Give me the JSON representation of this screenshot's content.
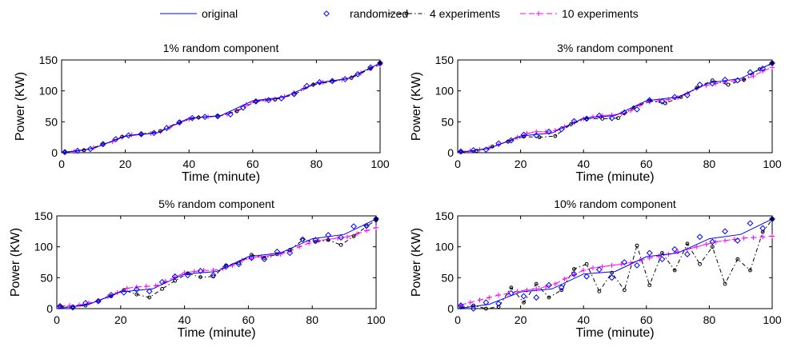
{
  "legend": [
    {
      "label": "original",
      "color": "#0000ff",
      "style": "line"
    },
    {
      "label": "randomized",
      "color": "#0000ff",
      "style": "diamond"
    },
    {
      "label": "4 experiments",
      "color": "#000000",
      "style": "dashdot-circle"
    },
    {
      "label": "10 experiments",
      "color": "#ff00ff",
      "style": "dash-plus"
    }
  ],
  "chart_data": [
    {
      "type": "line",
      "title": "1% random component",
      "xlabel": "Time (minute)",
      "ylabel": "Power (KW)",
      "xlim": [
        0,
        100
      ],
      "ylim": [
        0,
        150
      ],
      "xticks": [
        0,
        20,
        40,
        60,
        80,
        100
      ],
      "yticks": [
        0,
        50,
        100,
        150
      ],
      "series": [
        {
          "name": "original",
          "style": "line",
          "x": [
            0,
            10,
            20,
            30,
            40,
            50,
            60,
            70,
            80,
            90,
            100
          ],
          "y": [
            0,
            7,
            27,
            32,
            56,
            60,
            84,
            90,
            113,
            120,
            145
          ]
        },
        {
          "name": "randomized",
          "style": "diamond",
          "x": [
            1,
            5,
            9,
            13,
            17,
            21,
            25,
            29,
            33,
            37,
            41,
            45,
            49,
            53,
            57,
            61,
            65,
            69,
            73,
            77,
            81,
            85,
            89,
            93,
            97,
            100
          ],
          "y": [
            1,
            3,
            6,
            14,
            22,
            28,
            30,
            32,
            40,
            49,
            56,
            58,
            59,
            62,
            73,
            83,
            85,
            88,
            95,
            108,
            114,
            116,
            119,
            127,
            138,
            145
          ]
        },
        {
          "name": "4 experiments",
          "style": "dashdot-circle",
          "x": [
            1,
            7,
            13,
            19,
            25,
            31,
            37,
            43,
            49,
            55,
            61,
            67,
            73,
            79,
            85,
            91,
            97,
            100
          ],
          "y": [
            1,
            4,
            13,
            26,
            30,
            35,
            50,
            57,
            59,
            67,
            83,
            86,
            94,
            110,
            115,
            121,
            136,
            144
          ]
        },
        {
          "name": "10 experiments",
          "style": "dash-plus",
          "x": [
            1,
            4,
            7,
            10,
            13,
            16,
            19,
            22,
            25,
            28,
            31,
            34,
            37,
            40,
            43,
            46,
            49,
            52,
            55,
            58,
            61,
            64,
            67,
            70,
            73,
            76,
            79,
            82,
            85,
            88,
            91,
            94,
            97,
            100
          ],
          "y": [
            1,
            2,
            4,
            8,
            13,
            18,
            25,
            29,
            30,
            31,
            34,
            41,
            48,
            54,
            57,
            58,
            59,
            62,
            68,
            78,
            83,
            85,
            87,
            91,
            97,
            104,
            110,
            114,
            116,
            118,
            122,
            129,
            136,
            142
          ]
        }
      ]
    },
    {
      "type": "line",
      "title": "3% random component",
      "xlabel": "Time (minute)",
      "ylabel": "Power (KW)",
      "xlim": [
        0,
        100
      ],
      "ylim": [
        0,
        150
      ],
      "xticks": [
        0,
        20,
        40,
        60,
        80,
        100
      ],
      "yticks": [
        0,
        50,
        100,
        150
      ],
      "series": [
        {
          "name": "original",
          "style": "line",
          "x": [
            0,
            10,
            20,
            30,
            40,
            50,
            60,
            70,
            80,
            90,
            100
          ],
          "y": [
            0,
            7,
            27,
            32,
            56,
            60,
            84,
            90,
            113,
            120,
            145
          ]
        },
        {
          "name": "randomized",
          "style": "diamond",
          "x": [
            1,
            5,
            9,
            13,
            17,
            21,
            25,
            29,
            33,
            37,
            41,
            45,
            49,
            53,
            57,
            61,
            65,
            69,
            73,
            77,
            81,
            85,
            89,
            93,
            97,
            100
          ],
          "y": [
            2,
            4,
            5,
            15,
            20,
            29,
            28,
            34,
            38,
            51,
            55,
            60,
            56,
            65,
            70,
            85,
            83,
            90,
            93,
            110,
            112,
            118,
            117,
            130,
            136,
            145
          ]
        },
        {
          "name": "4 experiments",
          "style": "dashdot-circle",
          "x": [
            1,
            6,
            11,
            16,
            21,
            26,
            31,
            36,
            41,
            46,
            51,
            56,
            61,
            66,
            71,
            76,
            81,
            86,
            91,
            96,
            100
          ],
          "y": [
            1,
            3,
            10,
            18,
            26,
            25,
            27,
            46,
            55,
            55,
            56,
            73,
            84,
            80,
            90,
            105,
            117,
            110,
            118,
            135,
            144
          ]
        },
        {
          "name": "10 experiments",
          "style": "dash-plus",
          "x": [
            1,
            4,
            7,
            10,
            13,
            16,
            19,
            22,
            25,
            28,
            31,
            34,
            37,
            40,
            43,
            46,
            49,
            52,
            55,
            58,
            61,
            64,
            67,
            70,
            73,
            76,
            79,
            82,
            85,
            88,
            91,
            94,
            97,
            100
          ],
          "y": [
            2,
            3,
            5,
            8,
            13,
            18,
            25,
            31,
            34,
            34,
            36,
            42,
            49,
            55,
            58,
            60,
            61,
            63,
            68,
            77,
            82,
            84,
            86,
            89,
            96,
            104,
            109,
            112,
            114,
            116,
            118,
            124,
            132,
            138
          ]
        }
      ]
    },
    {
      "type": "line",
      "title": "5% random component",
      "xlabel": "Time (minute)",
      "ylabel": "Power (KW)",
      "xlim": [
        0,
        100
      ],
      "ylim": [
        0,
        150
      ],
      "xticks": [
        0,
        20,
        40,
        60,
        80,
        100
      ],
      "yticks": [
        0,
        50,
        100,
        150
      ],
      "series": [
        {
          "name": "original",
          "style": "line",
          "x": [
            0,
            10,
            20,
            30,
            40,
            50,
            60,
            70,
            80,
            90,
            100
          ],
          "y": [
            0,
            7,
            27,
            32,
            56,
            60,
            84,
            90,
            113,
            120,
            145
          ]
        },
        {
          "name": "randomized",
          "style": "diamond",
          "x": [
            1,
            5,
            9,
            13,
            17,
            21,
            25,
            29,
            33,
            37,
            41,
            45,
            49,
            53,
            57,
            61,
            65,
            69,
            73,
            77,
            81,
            85,
            89,
            93,
            97,
            100
          ],
          "y": [
            4,
            2,
            9,
            12,
            22,
            26,
            31,
            28,
            43,
            52,
            54,
            61,
            54,
            68,
            72,
            82,
            80,
            92,
            90,
            112,
            111,
            119,
            115,
            133,
            134,
            145
          ]
        },
        {
          "name": "4 experiments",
          "style": "dashdot-circle",
          "x": [
            1,
            5,
            9,
            13,
            17,
            21,
            25,
            29,
            33,
            37,
            41,
            45,
            49,
            53,
            57,
            61,
            65,
            69,
            73,
            77,
            81,
            85,
            89,
            93,
            97,
            100
          ],
          "y": [
            3,
            3,
            5,
            13,
            20,
            30,
            23,
            18,
            32,
            45,
            57,
            51,
            52,
            70,
            74,
            87,
            82,
            88,
            95,
            111,
            108,
            111,
            103,
            117,
            133,
            143
          ]
        },
        {
          "name": "10 experiments",
          "style": "dash-plus",
          "x": [
            1,
            4,
            7,
            10,
            13,
            16,
            19,
            22,
            25,
            28,
            31,
            34,
            37,
            40,
            43,
            46,
            49,
            52,
            55,
            58,
            61,
            64,
            67,
            70,
            73,
            76,
            79,
            82,
            85,
            88,
            91,
            94,
            97,
            100
          ],
          "y": [
            4,
            5,
            6,
            9,
            13,
            19,
            26,
            33,
            35,
            36,
            37,
            44,
            51,
            58,
            60,
            62,
            62,
            65,
            70,
            78,
            82,
            84,
            86,
            88,
            93,
            100,
            106,
            110,
            112,
            114,
            116,
            121,
            126,
            131
          ]
        }
      ]
    },
    {
      "type": "line",
      "title": "10% random component",
      "xlabel": "Time (minute)",
      "ylabel": "Power (KW)",
      "xlim": [
        0,
        100
      ],
      "ylim": [
        0,
        150
      ],
      "xticks": [
        0,
        20,
        40,
        60,
        80,
        100
      ],
      "yticks": [
        0,
        50,
        100,
        150
      ],
      "series": [
        {
          "name": "original",
          "style": "line",
          "x": [
            0,
            10,
            20,
            30,
            40,
            50,
            60,
            70,
            80,
            90,
            100
          ],
          "y": [
            0,
            7,
            27,
            32,
            56,
            60,
            84,
            90,
            113,
            120,
            145
          ]
        },
        {
          "name": "randomized",
          "style": "diamond",
          "x": [
            1,
            5,
            9,
            13,
            17,
            21,
            25,
            29,
            33,
            37,
            41,
            45,
            49,
            53,
            57,
            61,
            65,
            69,
            73,
            77,
            81,
            85,
            89,
            93,
            97,
            100
          ],
          "y": [
            5,
            0,
            10,
            8,
            25,
            20,
            18,
            38,
            34,
            56,
            52,
            63,
            50,
            75,
            70,
            90,
            80,
            96,
            88,
            116,
            108,
            125,
            110,
            138,
            130,
            145
          ]
        },
        {
          "name": "4 experiments",
          "style": "dashdot-circle",
          "x": [
            1,
            5,
            9,
            13,
            17,
            21,
            25,
            29,
            33,
            37,
            41,
            45,
            49,
            53,
            57,
            61,
            65,
            69,
            73,
            77,
            81,
            85,
            89,
            93,
            97,
            100
          ],
          "y": [
            2,
            5,
            0,
            3,
            34,
            10,
            40,
            18,
            30,
            64,
            72,
            28,
            58,
            30,
            102,
            38,
            90,
            62,
            105,
            72,
            100,
            40,
            80,
            62,
            124,
            144
          ]
        },
        {
          "name": "10 experiments",
          "style": "dash-plus",
          "x": [
            1,
            4,
            7,
            10,
            13,
            16,
            19,
            22,
            25,
            28,
            31,
            34,
            37,
            40,
            43,
            46,
            49,
            52,
            55,
            58,
            61,
            64,
            67,
            70,
            73,
            76,
            79,
            82,
            85,
            88,
            91,
            94,
            97,
            100
          ],
          "y": [
            6,
            10,
            14,
            18,
            22,
            24,
            28,
            30,
            32,
            35,
            40,
            48,
            55,
            62,
            66,
            68,
            70,
            72,
            74,
            78,
            82,
            85,
            88,
            92,
            96,
            100,
            104,
            108,
            110,
            112,
            114,
            115,
            116,
            117
          ]
        }
      ]
    }
  ]
}
